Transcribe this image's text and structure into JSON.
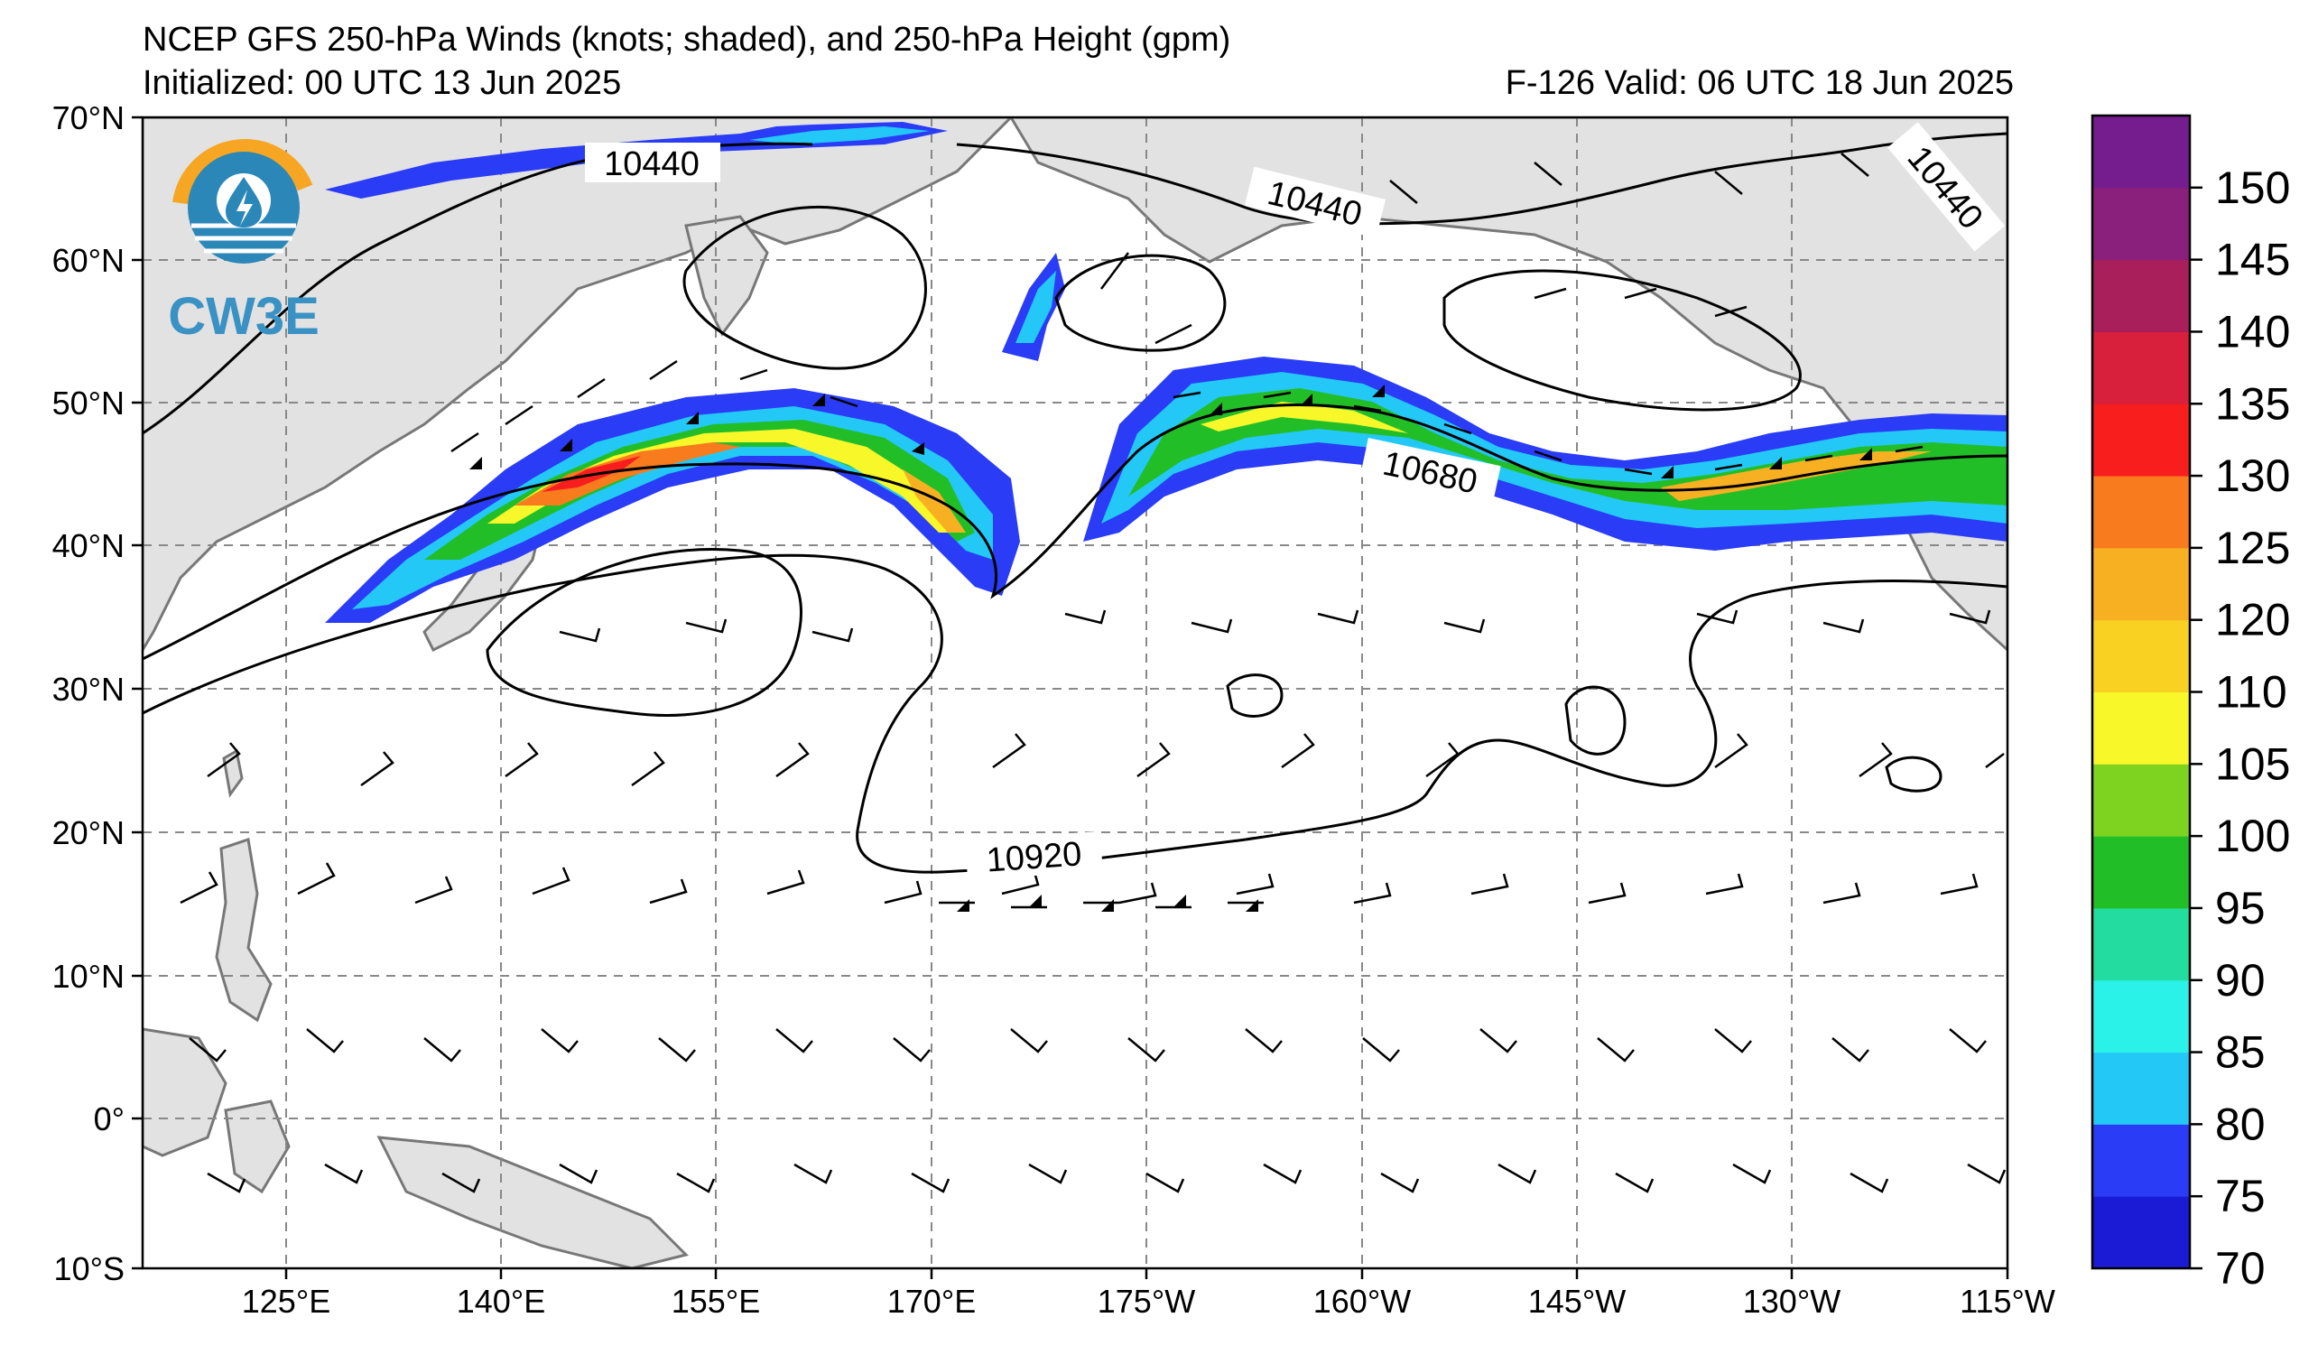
{
  "title": {
    "line1": "NCEP GFS 250-hPa Winds (knots; shaded), and 250-hPa Height (gpm)",
    "initialized": "Initialized: 00 UTC 13 Jun 2025",
    "valid": "F-126  Valid: 06 UTC 18 Jun 2025"
  },
  "logo": {
    "text": "CW3E",
    "colors": {
      "ring": "#f6a623",
      "globe": "#2b87b8",
      "text": "#3a91c4"
    }
  },
  "map": {
    "lat_range": [
      -10,
      70
    ],
    "lon_range_east": [
      115,
      245
    ],
    "lat_labels": [
      "70°N",
      "60°N",
      "50°N",
      "40°N",
      "30°N",
      "20°N",
      "10°N",
      "0°",
      "10°S"
    ],
    "lon_labels": [
      "125°E",
      "140°E",
      "155°E",
      "170°E",
      "175°W",
      "160°W",
      "145°W",
      "130°W",
      "115°W"
    ],
    "land_color": "#e2e2e2",
    "coast_color": "#777777",
    "grid_dashed": true
  },
  "height_contours": {
    "labels": [
      "10440",
      "10440",
      "10440",
      "10680",
      "10920"
    ],
    "line_color": "#000000"
  },
  "colorbar": {
    "ticks": [
      "70",
      "75",
      "80",
      "85",
      "90",
      "95",
      "100",
      "105",
      "110",
      "120",
      "125",
      "130",
      "135",
      "140",
      "145",
      "150"
    ],
    "colors": [
      "#1b1bd6",
      "#2a3cf5",
      "#24c8f7",
      "#2bf2e8",
      "#22dca0",
      "#22be28",
      "#7ed320",
      "#f7f72a",
      "#f9d122",
      "#f8b023",
      "#f87b1e",
      "#f91e1e",
      "#d81f3c",
      "#a81f5c",
      "#8a1f7c",
      "#751d8e"
    ]
  }
}
